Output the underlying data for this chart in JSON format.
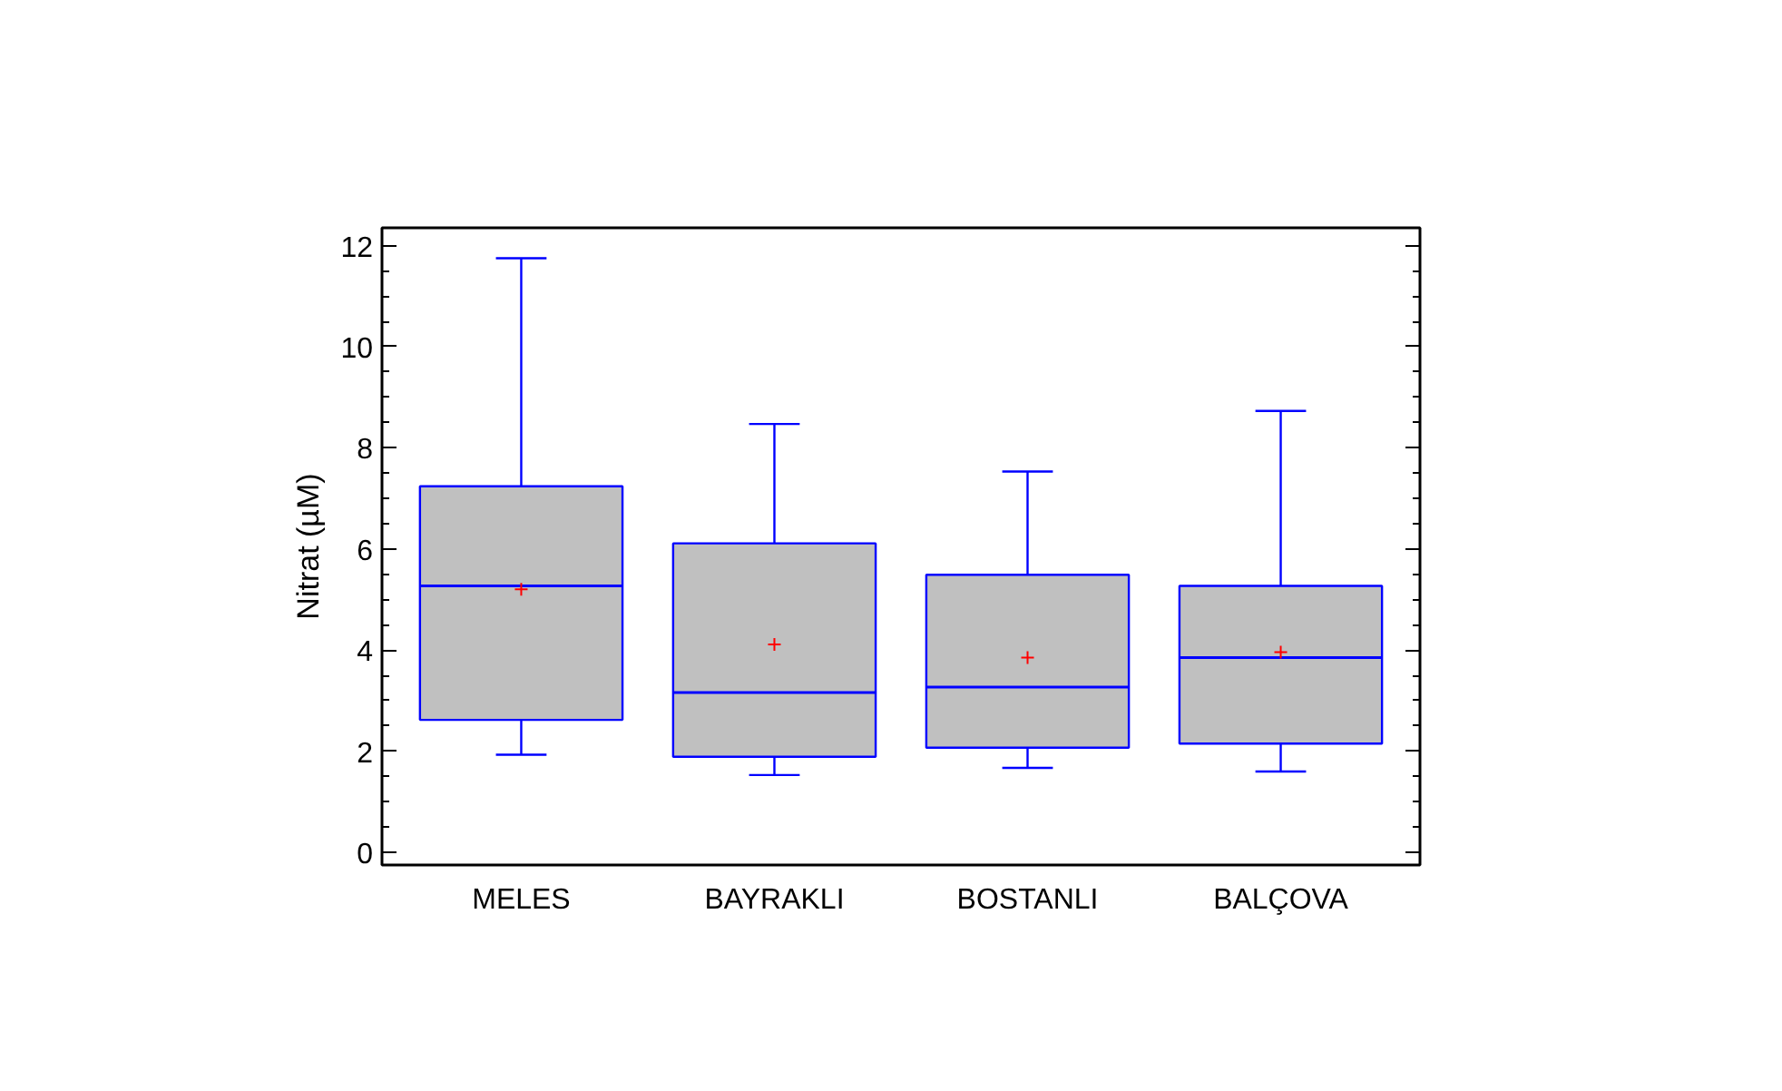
{
  "chart_data": {
    "type": "box",
    "ylabel": "Nitrat (µM)",
    "categories": [
      "MELES",
      "BAYRAKLI",
      "BOSTANLI",
      "BALÇOVA"
    ],
    "color": "#c0c0c0",
    "marker": "cross",
    "boxes": [
      {
        "low": 1.93,
        "q1": 2.62,
        "median": 5.27,
        "q3": 7.24,
        "high": 11.75,
        "mean": 5.2
      },
      {
        "low": 1.53,
        "q1": 1.89,
        "median": 3.16,
        "q3": 6.11,
        "high": 8.47,
        "mean": 4.11
      },
      {
        "low": 1.67,
        "q1": 2.07,
        "median": 3.27,
        "q3": 5.49,
        "high": 7.53,
        "mean": 3.85
      },
      {
        "low": 1.6,
        "q1": 2.15,
        "median": 3.85,
        "q3": 5.27,
        "high": 8.73,
        "mean": 3.96
      }
    ],
    "ylim": [
      -0.25,
      12.35
    ],
    "yticks": [
      0,
      2,
      4,
      6,
      8,
      10,
      12
    ],
    "grid": false
  }
}
